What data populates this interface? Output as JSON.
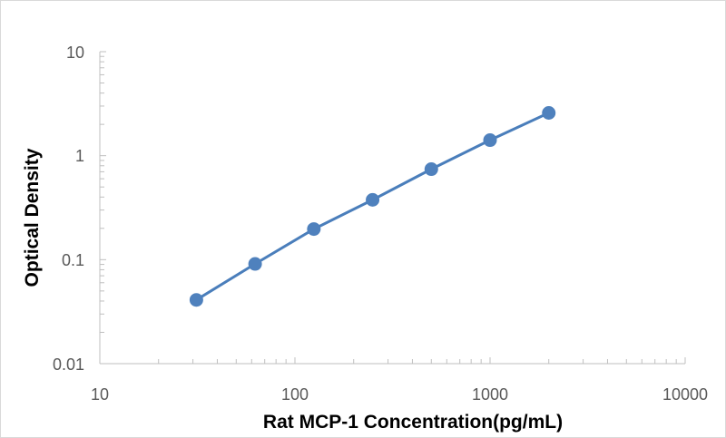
{
  "chart_data": {
    "type": "scatter",
    "title": "",
    "xlabel": "Rat MCP-1 Concentration(pg/mL)",
    "ylabel": "Optical Density",
    "x_scale": "log",
    "y_scale": "log",
    "xlim": [
      10,
      10000
    ],
    "ylim": [
      0.01,
      10
    ],
    "x_ticks": [
      "10",
      "100",
      "1000",
      "10000"
    ],
    "y_ticks": [
      "10",
      "1",
      "0.1",
      "0.01"
    ],
    "grid": false,
    "legend": "none",
    "colors": {
      "series": "#4a7ebb",
      "marker": "#4f81bd",
      "axis": "#bfbfbf"
    },
    "series": [
      {
        "x": [
          31.25,
          62.5,
          125,
          250,
          500,
          1000,
          2000
        ],
        "y": [
          0.041,
          0.091,
          0.197,
          0.376,
          0.742,
          1.411,
          2.578
        ]
      }
    ]
  }
}
